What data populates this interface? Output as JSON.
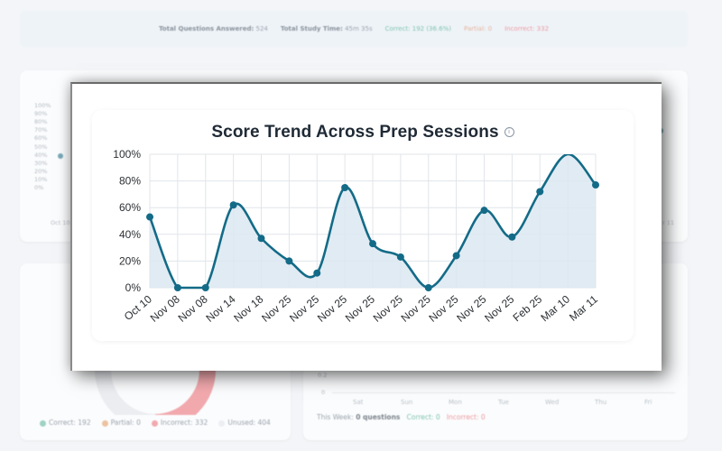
{
  "stats": {
    "total_questions_label": "Total Questions Answered:",
    "total_questions_value": "524",
    "total_time_label": "Total Study Time:",
    "total_time_value": "45m 35s",
    "correct": "Correct: 192 (36.6%)",
    "partial": "Partial: 0",
    "incorrect": "Incorrect: 332"
  },
  "background_chart": {
    "y_ticks": [
      "100%",
      "90%",
      "80%",
      "70%",
      "60%",
      "50%",
      "40%",
      "30%",
      "20%",
      "10%",
      "0%"
    ],
    "x_first": "Oct 10",
    "x_last": "r 11"
  },
  "donut_legend": {
    "correct": "Correct: 192",
    "partial": "Partial: 0",
    "incorrect": "Incorrect: 332",
    "unused": "Unused: 404"
  },
  "weekly": {
    "y_ticks": [
      "0.2",
      "0"
    ],
    "days": [
      "Sat",
      "Sun",
      "Mon",
      "Tue",
      "Wed",
      "Thu",
      "Fri"
    ],
    "summary_prefix": "This Week:",
    "summary_count": "0 questions",
    "correct": "Correct: 0",
    "incorrect": "Incorrect: 0"
  },
  "colors": {
    "line": "#136b87",
    "fill": "#dce8f1",
    "grid": "#e1e5ea",
    "correct": "#7fc4b0",
    "partial": "#e6b49a",
    "incorrect": "#ec9aa1"
  },
  "chart_data": {
    "type": "area",
    "title": "Score Trend Across Prep Sessions",
    "title_icon": "info-icon",
    "xlabel": "",
    "ylabel": "",
    "ylim": [
      0,
      100
    ],
    "y_ticks": [
      "0%",
      "20%",
      "40%",
      "60%",
      "80%",
      "100%"
    ],
    "grid": true,
    "categories": [
      "Oct 10",
      "Nov 08",
      "Nov 08",
      "Nov 14",
      "Nov 18",
      "Nov 25",
      "Nov 25",
      "Nov 25",
      "Nov 25",
      "Nov 25",
      "Nov 25",
      "Nov 25",
      "Nov 25",
      "Nov 25",
      "Feb 25",
      "Mar 10",
      "Mar 11"
    ],
    "series": [
      {
        "values": [
          53,
          0,
          0,
          62,
          37,
          20,
          11,
          75,
          33,
          23,
          0,
          24,
          58,
          38,
          72,
          100,
          77
        ]
      }
    ]
  }
}
